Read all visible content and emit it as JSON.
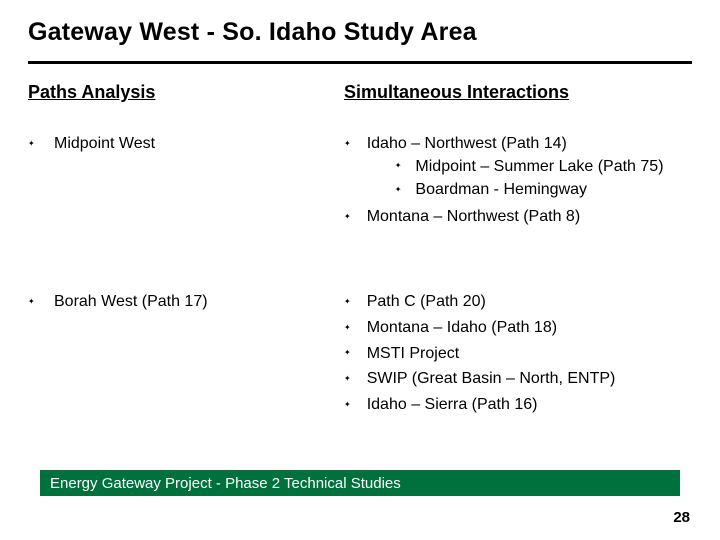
{
  "title": "Gateway West - So. Idaho Study Area",
  "left_heading": "Paths Analysis",
  "right_heading": "Simultaneous Interactions",
  "rows": [
    {
      "left": "Midpoint West",
      "right": [
        {
          "text": "Idaho – Northwest (Path 14)",
          "children": [
            "Midpoint – Summer Lake (Path 75)",
            "Boardman - Hemingway"
          ]
        },
        {
          "text": "Montana – Northwest (Path 8)"
        }
      ]
    },
    {
      "left": "Borah West (Path 17)",
      "right": [
        {
          "text": "Path C (Path 20)"
        },
        {
          "text": "Montana – Idaho (Path 18)"
        },
        {
          "text": "MSTI Project"
        },
        {
          "text": "SWIP (Great Basin – North, ENTP)"
        },
        {
          "text": "Idaho – Sierra (Path 16)"
        }
      ]
    }
  ],
  "footer": "Energy Gateway Project - Phase 2 Technical Studies",
  "page_number": "28",
  "colors": {
    "footer_bg": "#00703c",
    "footer_text": "#ffffff",
    "rule": "#000000",
    "text": "#000000",
    "background": "#ffffff"
  }
}
